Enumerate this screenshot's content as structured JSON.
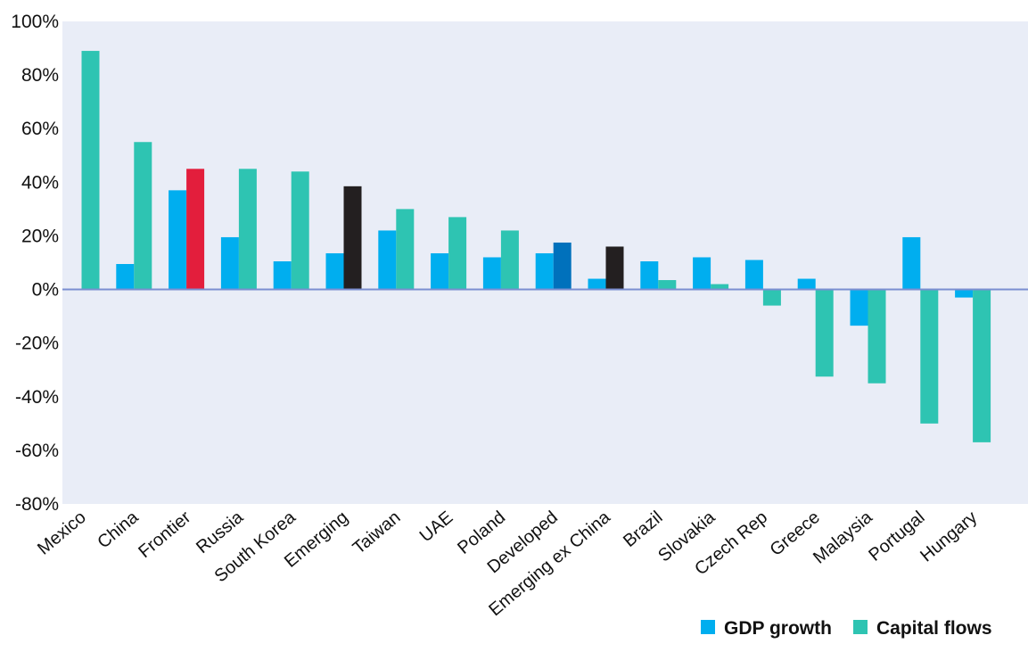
{
  "chart_data": {
    "type": "bar",
    "title": "",
    "xlabel": "",
    "ylabel": "",
    "ylim": [
      -80,
      100
    ],
    "yticks": [
      -80,
      -60,
      -40,
      -20,
      0,
      20,
      40,
      60,
      80,
      100
    ],
    "ytick_labels": [
      "-80%",
      "-60%",
      "-40%",
      "-20%",
      "0%",
      "20%",
      "40%",
      "60%",
      "80%",
      "100%"
    ],
    "grid": false,
    "legend_position": "bottom-right",
    "categories": [
      "Mexico",
      "China",
      "Frontier",
      "Russia",
      "South Korea",
      "Emerging",
      "Taiwan",
      "UAE",
      "Poland",
      "Developed",
      "Emerging ex China",
      "Brazil",
      "Slovakia",
      "Czech Rep",
      "Greece",
      "Malaysia",
      "Portugal",
      "Hungary"
    ],
    "series": [
      {
        "name": "GDP growth",
        "color": "#00aeef",
        "values": [
          0,
          9.5,
          37,
          19.5,
          10.5,
          13.5,
          22,
          13.5,
          12,
          13.5,
          4,
          10.5,
          12,
          11,
          4,
          -13.5,
          19.5,
          -3
        ]
      },
      {
        "name": "Capital flows",
        "color": "#2ec4b2",
        "values": [
          89,
          55,
          45,
          45,
          44,
          38.5,
          30,
          27,
          22,
          17.5,
          16,
          3.5,
          2,
          -6,
          -32.5,
          -35,
          -50,
          -57
        ]
      }
    ],
    "highlight_colors": {
      "Frontier": {
        "Capital flows": "#e31e3c"
      },
      "Emerging": {
        "Capital flows": "#231f20"
      },
      "Developed": {
        "Capital flows": "#0071bc"
      },
      "Emerging ex China": {
        "Capital flows": "#231f20"
      }
    },
    "colors": {
      "plot_background": "#e9edf7",
      "zero_line": "#7b8ed0"
    }
  }
}
